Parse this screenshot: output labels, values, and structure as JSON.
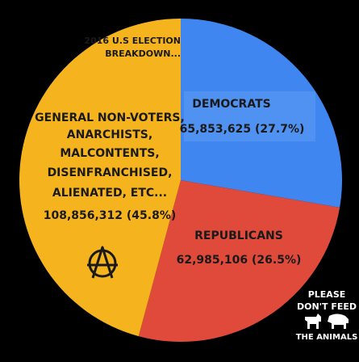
{
  "chart_data": {
    "type": "pie",
    "title_lines": [
      "2016 U.S ELECTION",
      "BREAKDOWN..."
    ],
    "slices": [
      {
        "key": "dem",
        "name": "DEMOCRATS",
        "value": 65853625,
        "value_label": "65,853,625 (27.7%)",
        "percent": 27.7,
        "color": "#3F86F0",
        "label_lines": [
          "DEMOCRATS",
          "65,853,625 (27.7%)"
        ]
      },
      {
        "key": "rep",
        "name": "REPUBLICANS",
        "value": 62985106,
        "value_label": "62,985,106 (26.5%)",
        "percent": 26.5,
        "color": "#E04A3B",
        "label_lines": [
          "REPUBLICANS",
          "62,985,106 (26.5%)"
        ]
      },
      {
        "key": "non",
        "name": "GENERAL NON-VOTERS, ANARCHISTS, MALCONTENTS, DISENFRANCHISED, ALIENATED, ETC...",
        "value": 108856312,
        "value_label": "108,856,312 (45.8%)",
        "percent": 45.8,
        "color": "#F5B41E",
        "label_lines": [
          "GENERAL NON-VOTERS,",
          "ANARCHISTS,",
          "MALCONTENTS,",
          "DISENFRANCHISED,",
          "ALIENATED, ETC...",
          "108,856,312 (45.8%)"
        ]
      }
    ]
  },
  "badge": {
    "lines": [
      "PLEASE",
      "DON'T FEED",
      "THE ANIMALS"
    ]
  },
  "colors": {
    "background": "#000000",
    "democrats": "#3F86F0",
    "republicans": "#E04A3B",
    "non_voters": "#F5B41E",
    "text_dark": "#1a1a1a"
  }
}
